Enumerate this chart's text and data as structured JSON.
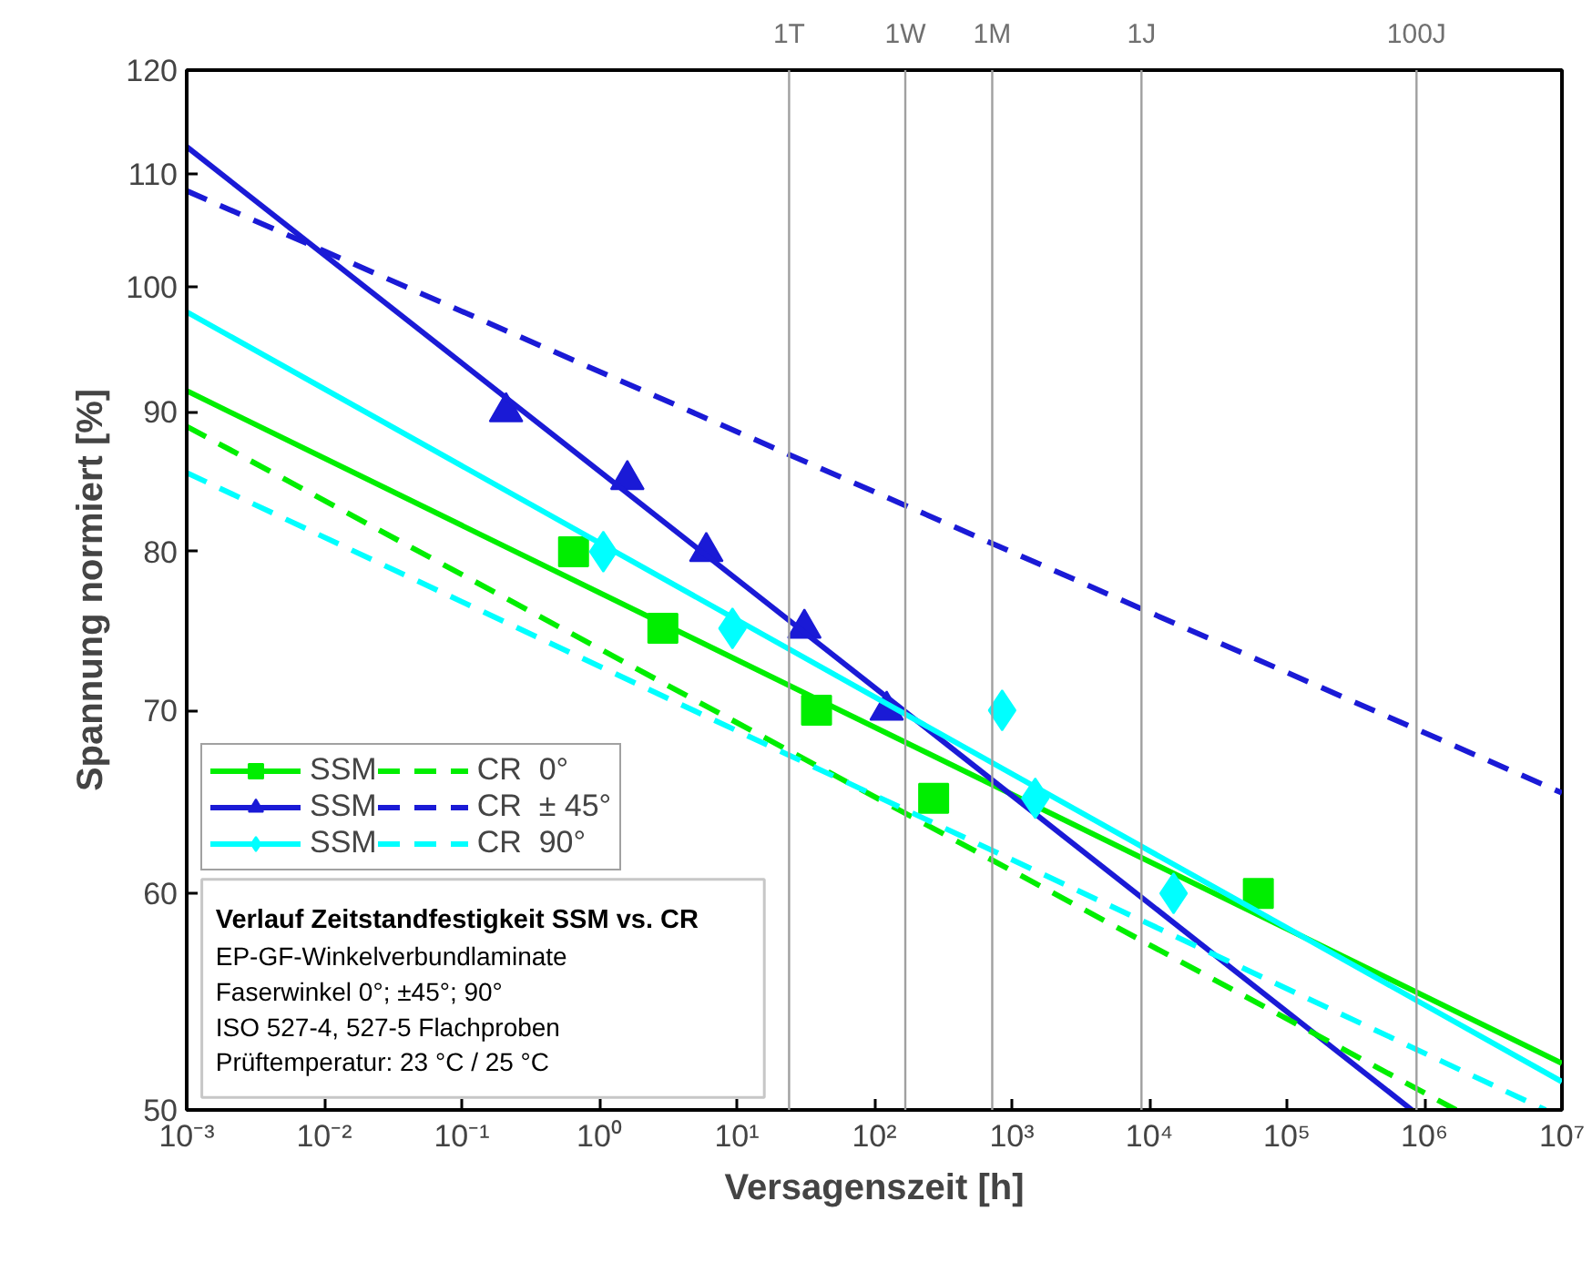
{
  "chart_data": {
    "type": "scatter",
    "xlabel": "Versagenszeit [h]",
    "ylabel": "Spannung normiert [%]",
    "log": "xy",
    "xlim": [
      0.001,
      10000000
    ],
    "ylim": [
      50,
      120
    ],
    "xticks": [
      {
        "value": 0.001,
        "label": "10⁻³"
      },
      {
        "value": 0.01,
        "label": "10⁻²"
      },
      {
        "value": 0.1,
        "label": "10⁻¹"
      },
      {
        "value": 1,
        "label": "10⁰"
      },
      {
        "value": 10,
        "label": "10¹"
      },
      {
        "value": 100,
        "label": "10²"
      },
      {
        "value": 1000,
        "label": "10³"
      },
      {
        "value": 10000,
        "label": "10⁴"
      },
      {
        "value": 100000,
        "label": "10⁵"
      },
      {
        "value": 1000000,
        "label": "10⁶"
      },
      {
        "value": 10000000,
        "label": "10⁷"
      }
    ],
    "yticks": [
      50,
      60,
      70,
      80,
      90,
      100,
      110,
      120
    ],
    "grid": false,
    "legend": "left",
    "series": [
      {
        "name": "SSM",
        "marker": "square",
        "color": "#00ee00",
        "x": [
          0.65,
          2.9,
          38,
          270,
          62000
        ],
        "values": [
          80,
          75,
          70,
          65,
          60
        ]
      },
      {
        "type": "line",
        "line_style": "solid",
        "color": "#00ee00",
        "x": [
          0.001,
          10000000
        ],
        "values": [
          91.6,
          52.0
        ]
      },
      {
        "name": "SSM",
        "marker": "triangle",
        "color": "#1a1ad6",
        "x": [
          0.21,
          1.6,
          6,
          31,
          123
        ],
        "values": [
          90,
          85,
          80,
          75,
          70
        ]
      },
      {
        "type": "line",
        "line_style": "solid",
        "color": "#1a1ad6",
        "x": [
          0.001,
          810000
        ],
        "values": [
          112.5,
          50
        ]
      },
      {
        "name": "SSM",
        "marker": "diamond",
        "color": "#00ffff",
        "x": [
          1.07,
          9.3,
          850,
          1480,
          15000
        ],
        "values": [
          80,
          75,
          70,
          65,
          60
        ]
      },
      {
        "type": "line",
        "line_style": "solid",
        "color": "#00ffff",
        "x": [
          0.001,
          10000000
        ],
        "values": [
          97.9,
          51.2
        ]
      },
      {
        "name": "CR  0°",
        "type": "line",
        "line_style": "dashed",
        "color": "#00ee00",
        "x": [
          0.001,
          1700000
        ],
        "values": [
          88.9,
          50
        ]
      },
      {
        "name": "CR  ± 45°",
        "type": "line",
        "line_style": "dashed",
        "color": "#1a1ad6",
        "x": [
          0.001,
          10000000
        ],
        "values": [
          108.4,
          65.3
        ]
      },
      {
        "name": "CR  90°",
        "type": "line",
        "line_style": "dashed",
        "color": "#00ffff",
        "x": [
          0.001,
          7600000
        ],
        "values": [
          85.5,
          50
        ]
      }
    ],
    "ref_lines": [
      {
        "axis": "x",
        "value": 24,
        "label": "1T",
        "color": "#a0a0a0"
      },
      {
        "axis": "x",
        "value": 168,
        "label": "1W",
        "color": "#a0a0a0"
      },
      {
        "axis": "x",
        "value": 720,
        "label": "1M",
        "color": "#a0a0a0"
      },
      {
        "axis": "x",
        "value": 8760,
        "label": "1J",
        "color": "#a0a0a0"
      },
      {
        "axis": "x",
        "value": 876000,
        "label": "100J",
        "color": "#a0a0a0"
      }
    ],
    "annotations": [
      "Verlauf Zeitstandfestigkeit SSM vs. CR",
      "EP-GF-Winkelverbundlaminate",
      "Faserwinkel  0°; ±45°; 90°",
      "ISO 527-4, 527-5  Flachproben",
      "Prüftemperatur: 23 °C / 25 °C"
    ]
  }
}
